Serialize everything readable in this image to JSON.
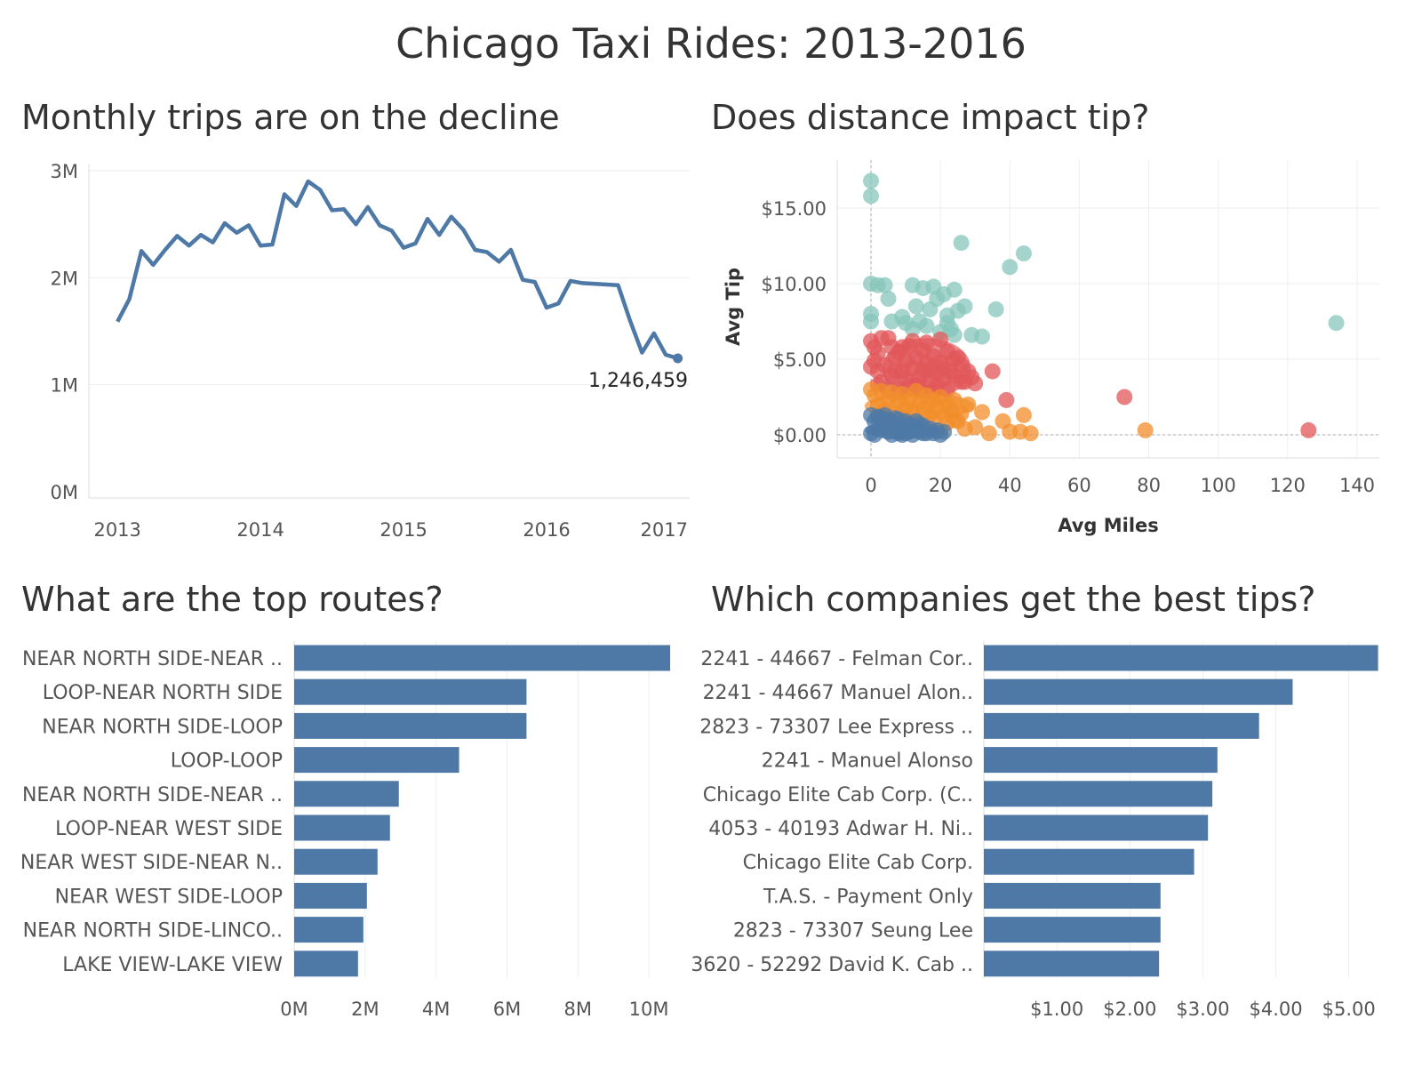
{
  "title": "Chicago Taxi Rides: 2013-2016",
  "colors": {
    "bar": "#4e79a7",
    "line": "#4e79a7",
    "grid": "#eeeeee",
    "teal": "#86c5bb",
    "red": "#e15759",
    "orange": "#f28e2b",
    "blue": "#4e79a7"
  },
  "chart_data": [
    {
      "type": "line",
      "title": "Monthly trips are on the decline",
      "xlabel": "",
      "ylabel": "",
      "ylim": [
        0,
        3000000
      ],
      "xlim": [
        2012.8,
        2017.0
      ],
      "x_ticks": [
        "2013",
        "2014",
        "2015",
        "2016",
        "2017"
      ],
      "y_ticks": [
        "0M",
        "1M",
        "2M",
        "3M"
      ],
      "x": [
        2013.0,
        2013.083,
        2013.167,
        2013.25,
        2013.333,
        2013.417,
        2013.5,
        2013.583,
        2013.667,
        2013.75,
        2013.833,
        2013.917,
        2014.0,
        2014.083,
        2014.167,
        2014.25,
        2014.333,
        2014.417,
        2014.5,
        2014.583,
        2014.667,
        2014.75,
        2014.833,
        2014.917,
        2015.0,
        2015.083,
        2015.167,
        2015.25,
        2015.333,
        2015.417,
        2015.5,
        2015.583,
        2015.667,
        2015.75,
        2015.833,
        2015.917,
        2016.0,
        2016.083,
        2016.167,
        2016.25,
        2016.5,
        2016.583,
        2016.667,
        2016.75,
        2016.833,
        2016.917
      ],
      "values": [
        1590000,
        1800000,
        2250000,
        2120000,
        2260000,
        2390000,
        2300000,
        2400000,
        2330000,
        2510000,
        2420000,
        2490000,
        2300000,
        2310000,
        2780000,
        2670000,
        2900000,
        2820000,
        2630000,
        2640000,
        2500000,
        2660000,
        2490000,
        2440000,
        2280000,
        2320000,
        2550000,
        2400000,
        2570000,
        2450000,
        2260000,
        2240000,
        2150000,
        2260000,
        1980000,
        1960000,
        1720000,
        1760000,
        1970000,
        1950000,
        1930000,
        1600000,
        1300000,
        1480000,
        1280000,
        1246459
      ],
      "annotation": {
        "text": "1,246,459",
        "x": 2016.917,
        "value": 1246459
      }
    },
    {
      "type": "scatter",
      "title": "Does distance impact tip?",
      "xlabel": "Avg Miles",
      "ylabel": "Avg Tip",
      "xlim": [
        -9,
        142
      ],
      "ylim": [
        -1.5,
        18
      ],
      "x_ticks": [
        "0",
        "20",
        "40",
        "60",
        "80",
        "100",
        "120",
        "140"
      ],
      "y_ticks": [
        "$0.00",
        "$5.00",
        "$10.00",
        "$15.00"
      ],
      "series": [
        {
          "name": "teal",
          "color": "#86c5bb",
          "points": [
            [
              0,
              16.8
            ],
            [
              0,
              15.8
            ],
            [
              0,
              10
            ],
            [
              2,
              9.9
            ],
            [
              4,
              9.9
            ],
            [
              5,
              9
            ],
            [
              0,
              8
            ],
            [
              0,
              7.5
            ],
            [
              6,
              7.5
            ],
            [
              9,
              7.8
            ],
            [
              10,
              7.4
            ],
            [
              12,
              7
            ],
            [
              13,
              8.5
            ],
            [
              14,
              7.5
            ],
            [
              16,
              7.2
            ],
            [
              18,
              9.8
            ],
            [
              15,
              9.7
            ],
            [
              17,
              8.3
            ],
            [
              19,
              9
            ],
            [
              21,
              9.3
            ],
            [
              22,
              7.4
            ],
            [
              20,
              6.8
            ],
            [
              23,
              7
            ],
            [
              24,
              6.6
            ],
            [
              25,
              8.2
            ],
            [
              26,
              12.7
            ],
            [
              27,
              8.5
            ],
            [
              29,
              6.6
            ],
            [
              32,
              6.5
            ],
            [
              36,
              8.3
            ],
            [
              40,
              11.1
            ],
            [
              44,
              12
            ],
            [
              134,
              7.4
            ],
            [
              24,
              9.6
            ],
            [
              12,
              9.9
            ],
            [
              22,
              7.9
            ]
          ]
        },
        {
          "name": "red",
          "color": "#e15759",
          "points": [
            [
              0,
              6.2
            ],
            [
              1,
              5.8
            ],
            [
              2,
              5.4
            ],
            [
              3,
              6.4
            ],
            [
              1,
              4.9
            ],
            [
              5,
              6.4
            ],
            [
              0,
              4.5
            ],
            [
              2,
              4.2
            ],
            [
              4,
              4.6
            ],
            [
              3,
              3.5
            ],
            [
              6,
              3.9
            ],
            [
              7,
              5.1
            ],
            [
              8,
              5.5
            ],
            [
              9,
              4.2
            ],
            [
              10,
              3.7
            ],
            [
              11,
              5.9
            ],
            [
              12,
              4.4
            ],
            [
              13,
              5.1
            ],
            [
              14,
              3.8
            ],
            [
              15,
              5.6
            ],
            [
              16,
              4.7
            ],
            [
              17,
              3.6
            ],
            [
              18,
              5.2
            ],
            [
              19,
              4.1
            ],
            [
              20,
              4.8
            ],
            [
              21,
              3.7
            ],
            [
              22,
              5.5
            ],
            [
              23,
              4.2
            ],
            [
              24,
              3.9
            ],
            [
              25,
              5.1
            ],
            [
              26,
              4.6
            ],
            [
              27,
              3.5
            ],
            [
              28,
              4.2
            ],
            [
              30,
              3.4
            ],
            [
              12,
              6.2
            ],
            [
              16,
              6.1
            ],
            [
              20,
              6.3
            ],
            [
              8,
              3.0
            ],
            [
              14,
              3.1
            ],
            [
              18,
              2.9
            ],
            [
              6,
              5.8
            ],
            [
              10,
              4.9
            ],
            [
              13,
              3.3
            ],
            [
              17,
              4.3
            ],
            [
              21,
              4.4
            ],
            [
              24,
              5.0
            ],
            [
              35,
              4.2
            ],
            [
              39,
              2.3
            ],
            [
              73,
              2.5
            ],
            [
              126,
              0.3
            ],
            [
              5,
              3.0
            ],
            [
              9,
              5.8
            ],
            [
              11,
              3.2
            ],
            [
              15,
              4.3
            ],
            [
              19,
              3.2
            ],
            [
              22,
              3.0
            ],
            [
              26,
              3.5
            ],
            [
              29,
              3.8
            ],
            [
              2,
              3.3
            ],
            [
              7,
              4.2
            ]
          ]
        },
        {
          "name": "orange",
          "color": "#f28e2b",
          "points": [
            [
              0,
              3.0
            ],
            [
              1,
              2.6
            ],
            [
              2,
              2.0
            ],
            [
              3,
              2.9
            ],
            [
              4,
              1.6
            ],
            [
              5,
              2.4
            ],
            [
              6,
              2.8
            ],
            [
              7,
              1.4
            ],
            [
              8,
              2.2
            ],
            [
              9,
              2.7
            ],
            [
              10,
              1.8
            ],
            [
              11,
              2.3
            ],
            [
              12,
              1.5
            ],
            [
              13,
              2.9
            ],
            [
              14,
              2.1
            ],
            [
              15,
              1.7
            ],
            [
              16,
              2.6
            ],
            [
              17,
              1.3
            ],
            [
              18,
              2.3
            ],
            [
              19,
              1.8
            ],
            [
              20,
              2.5
            ],
            [
              21,
              1.3
            ],
            [
              22,
              2.0
            ],
            [
              23,
              1.6
            ],
            [
              24,
              2.3
            ],
            [
              25,
              0.9
            ],
            [
              26,
              1.4
            ],
            [
              28,
              2.0
            ],
            [
              30,
              0.5
            ],
            [
              32,
              1.5
            ],
            [
              34,
              0.1
            ],
            [
              38,
              0.9
            ],
            [
              40,
              0.2
            ],
            [
              43,
              0.2
            ],
            [
              44,
              1.3
            ],
            [
              46,
              0.1
            ],
            [
              79,
              0.3
            ],
            [
              3,
              0.9
            ],
            [
              8,
              0.9
            ],
            [
              13,
              0.9
            ],
            [
              18,
              1.0
            ],
            [
              24,
              1.0
            ],
            [
              20,
              0.3
            ],
            [
              16,
              0.3
            ],
            [
              6,
              0.5
            ],
            [
              11,
              0.6
            ],
            [
              2,
              1.3
            ],
            [
              27,
              0.4
            ],
            [
              22,
              0.8
            ],
            [
              9,
              1.2
            ]
          ]
        },
        {
          "name": "blue",
          "color": "#4e79a7",
          "points": [
            [
              0,
              1.3
            ],
            [
              1,
              0.9
            ],
            [
              2,
              0.4
            ],
            [
              3,
              1.1
            ],
            [
              4,
              0.6
            ],
            [
              5,
              0.2
            ],
            [
              6,
              0.8
            ],
            [
              7,
              0.3
            ],
            [
              8,
              1.0
            ],
            [
              9,
              0.5
            ],
            [
              10,
              0.1
            ],
            [
              11,
              0.7
            ],
            [
              12,
              0.3
            ],
            [
              13,
              0.9
            ],
            [
              14,
              0.2
            ],
            [
              15,
              0.6
            ],
            [
              16,
              0.1
            ],
            [
              17,
              0.4
            ],
            [
              18,
              0.1
            ],
            [
              19,
              0.3
            ],
            [
              20,
              0.0
            ],
            [
              21,
              0.2
            ],
            [
              0,
              0.1
            ],
            [
              1,
              0.0
            ],
            [
              2,
              1.2
            ],
            [
              4,
              1.3
            ],
            [
              6,
              0.0
            ],
            [
              8,
              0.1
            ],
            [
              10,
              0.9
            ],
            [
              12,
              0.0
            ],
            [
              14,
              0.7
            ],
            [
              3,
              0.5
            ],
            [
              5,
              1.0
            ],
            [
              7,
              1.1
            ],
            [
              9,
              0.0
            ],
            [
              11,
              0.2
            ],
            [
              13,
              0.4
            ],
            [
              15,
              0.1
            ]
          ]
        }
      ]
    },
    {
      "type": "bar",
      "orientation": "horizontal",
      "title": "What are the top routes?",
      "categories": [
        "NEAR NORTH SIDE-NEAR ..",
        "LOOP-NEAR NORTH SIDE",
        "NEAR NORTH SIDE-LOOP",
        "LOOP-LOOP",
        "NEAR NORTH SIDE-NEAR ..",
        "LOOP-NEAR WEST SIDE",
        "NEAR WEST SIDE-NEAR N..",
        "NEAR WEST SIDE-LOOP",
        "NEAR NORTH SIDE-LINCO..",
        "LAKE VIEW-LAKE VIEW"
      ],
      "values": [
        10600000,
        6550000,
        6550000,
        4650000,
        2950000,
        2700000,
        2350000,
        2050000,
        1950000,
        1800000
      ],
      "xlim": [
        0,
        11200000
      ],
      "x_tick_values": [
        0,
        2000000,
        4000000,
        6000000,
        8000000,
        10000000
      ],
      "x_ticks": [
        "0M",
        "2M",
        "4M",
        "6M",
        "8M",
        "10M"
      ]
    },
    {
      "type": "bar",
      "orientation": "horizontal",
      "title": "Which companies get the best tips?",
      "categories": [
        "2241 - 44667 - Felman Cor..",
        "2241 - 44667 Manuel Alon..",
        "2823 - 73307 Lee Express ..",
        "2241 - Manuel Alonso",
        "Chicago Elite Cab Corp. (C..",
        "4053 - 40193 Adwar H. Ni..",
        "Chicago Elite Cab Corp.",
        "T.A.S. - Payment Only",
        "2823 - 73307 Seung Lee",
        "3620 - 52292 David K. Cab .."
      ],
      "values": [
        5.4,
        4.23,
        3.77,
        3.2,
        3.13,
        3.07,
        2.88,
        2.42,
        2.42,
        2.4
      ],
      "xlim": [
        0,
        5.6
      ],
      "x_tick_values": [
        1,
        2,
        3,
        4,
        5
      ],
      "x_ticks": [
        "$1.00",
        "$2.00",
        "$3.00",
        "$4.00",
        "$5.00"
      ]
    }
  ]
}
